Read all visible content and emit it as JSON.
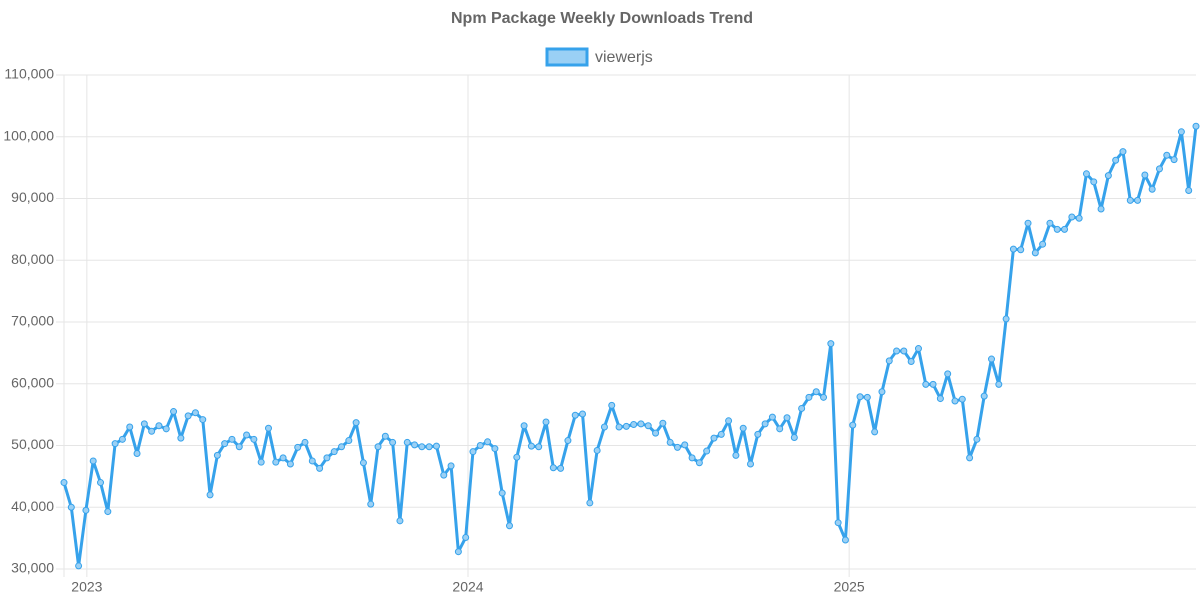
{
  "chart_data": {
    "type": "line",
    "title": "Npm Package Weekly Downloads Trend",
    "xlim": [
      2022.94,
      2025.91
    ],
    "xticks": [
      2023,
      2024,
      2025
    ],
    "ylim": [
      30000,
      110000
    ],
    "yticks": [
      {
        "value": 30000,
        "label": "30,000"
      },
      {
        "value": 40000,
        "label": "40,000"
      },
      {
        "value": 50000,
        "label": "50,000"
      },
      {
        "value": 60000,
        "label": "60,000"
      },
      {
        "value": 70000,
        "label": "70,000"
      },
      {
        "value": 80000,
        "label": "80,000"
      },
      {
        "value": 90000,
        "label": "90,000"
      },
      {
        "value": 100000,
        "label": "100,000"
      },
      {
        "value": 110000,
        "label": "110,000"
      }
    ],
    "grid": true,
    "series": [
      {
        "name": "viewerjs",
        "color": "#36a2eb",
        "fill": "#9ad0f5",
        "values": [
          44000,
          40000,
          30500,
          39500,
          47500,
          44000,
          39300,
          50300,
          51000,
          53000,
          48700,
          53500,
          52300,
          53200,
          52700,
          55500,
          51200,
          54800,
          55300,
          54200,
          42000,
          48400,
          50300,
          51000,
          49800,
          51700,
          51000,
          47300,
          52800,
          47300,
          48000,
          47000,
          49700,
          50500,
          47500,
          46300,
          48000,
          49000,
          49800,
          50800,
          53700,
          47200,
          40500,
          49800,
          51500,
          50500,
          37800,
          50500,
          50100,
          49800,
          49800,
          49900,
          45200,
          46700,
          32800,
          35100,
          49000,
          50000,
          50600,
          49500,
          42300,
          37000,
          48100,
          53200,
          49900,
          49800,
          53800,
          46400,
          46300,
          50800,
          54900,
          55100,
          40700,
          49200,
          53000,
          56500,
          53000,
          53100,
          53400,
          53500,
          53200,
          52000,
          53600,
          50500,
          49700,
          50100,
          48000,
          47200,
          49100,
          51200,
          51800,
          54000,
          48400,
          52800,
          47000,
          51800,
          53500,
          54600,
          52700,
          54500,
          51300,
          56000,
          57800,
          58700,
          57800,
          66500,
          37500,
          34700,
          53300,
          57900,
          57800,
          52200,
          58700,
          63700,
          65300,
          65300,
          63600,
          65700,
          59900,
          59900,
          57600,
          61600,
          57200,
          57500,
          48000,
          51000,
          58000,
          64000,
          59900,
          70500,
          81800,
          81700,
          86000,
          81200,
          82600,
          86000,
          85000,
          85000,
          87000,
          86800,
          94000,
          92700,
          88300,
          93700,
          96200,
          97600,
          89700,
          89700,
          93800,
          91500,
          94800,
          97000,
          96300,
          100800,
          91300,
          101700
        ]
      }
    ]
  }
}
